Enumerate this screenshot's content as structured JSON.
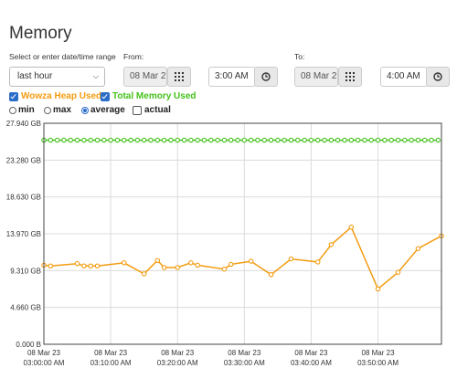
{
  "page": {
    "title": "Memory"
  },
  "controls": {
    "range_label": "Select or enter date/time range",
    "range_value": "last hour",
    "from_label": "From:",
    "from_date": "08 Mar 2",
    "from_time": "3:00 AM",
    "to_label": "To:",
    "to_date": "08 Mar 2",
    "to_time": "4:00 AM"
  },
  "legend": {
    "heap": {
      "label": "Wowza Heap Used",
      "checked": true,
      "color": "#f39c12"
    },
    "total": {
      "label": "Total Memory Used",
      "checked": true,
      "color": "#44c21b"
    }
  },
  "aggregation": {
    "options": [
      "min",
      "max",
      "average",
      "actual"
    ],
    "selected": "average",
    "actual_checked": false
  },
  "chart_data": {
    "type": "line",
    "ylim": [
      0,
      27.94
    ],
    "y_ticks": [
      "27.940 GB",
      "23.280 GB",
      "18.630 GB",
      "13.970 GB",
      "9.310 GB",
      "4.660 GB",
      "0.000 B"
    ],
    "x_ticks": [
      [
        "08 Mar 23",
        "03:00:00 AM"
      ],
      [
        "08 Mar 23",
        "03:10:00 AM"
      ],
      [
        "08 Mar 23",
        "03:20:00 AM"
      ],
      [
        "08 Mar 23",
        "03:30:00 AM"
      ],
      [
        "08 Mar 23",
        "03:40:00 AM"
      ],
      [
        "08 Mar 23",
        "03:50:00 AM"
      ]
    ],
    "xlim_minutes": [
      0,
      59.5
    ],
    "series": [
      {
        "name": "Total Memory Used",
        "color": "#44c21b",
        "x": [
          0,
          1,
          2,
          3,
          4,
          5,
          6,
          7,
          8,
          9,
          10,
          11,
          12,
          13,
          14,
          15,
          16,
          17,
          18,
          19,
          20,
          21,
          22,
          23,
          24,
          25,
          26,
          27,
          28,
          29,
          30,
          31,
          32,
          33,
          34,
          35,
          36,
          37,
          38,
          39,
          40,
          41,
          42,
          43,
          44,
          45,
          46,
          47,
          48,
          49,
          50,
          51,
          52,
          53,
          54,
          55,
          56,
          57,
          58,
          59
        ],
        "y": [
          25.8,
          25.8,
          25.8,
          25.8,
          25.8,
          25.8,
          25.8,
          25.8,
          25.8,
          25.8,
          25.8,
          25.8,
          25.8,
          25.8,
          25.8,
          25.8,
          25.8,
          25.8,
          25.8,
          25.8,
          25.8,
          25.8,
          25.8,
          25.8,
          25.8,
          25.8,
          25.8,
          25.8,
          25.8,
          25.8,
          25.8,
          25.8,
          25.8,
          25.8,
          25.8,
          25.8,
          25.8,
          25.8,
          25.8,
          25.8,
          25.8,
          25.8,
          25.8,
          25.8,
          25.8,
          25.8,
          25.8,
          25.8,
          25.8,
          25.8,
          25.8,
          25.8,
          25.8,
          25.8,
          25.8,
          25.8,
          25.8,
          25.8,
          25.8,
          25.8
        ]
      },
      {
        "name": "Wowza Heap Used",
        "color": "#f39c12",
        "x": [
          0,
          1,
          5,
          6,
          7,
          8,
          12,
          15,
          17,
          18,
          20,
          22,
          23,
          27,
          28,
          31,
          34,
          37,
          41,
          43,
          46,
          50,
          53,
          56,
          59.5
        ],
        "y": [
          10.0,
          9.9,
          10.2,
          9.9,
          9.9,
          9.9,
          10.3,
          8.9,
          10.6,
          9.7,
          9.7,
          10.3,
          10.0,
          9.5,
          10.1,
          10.5,
          8.8,
          10.8,
          10.4,
          12.6,
          14.8,
          7.0,
          9.1,
          12.1,
          13.7
        ]
      }
    ]
  }
}
